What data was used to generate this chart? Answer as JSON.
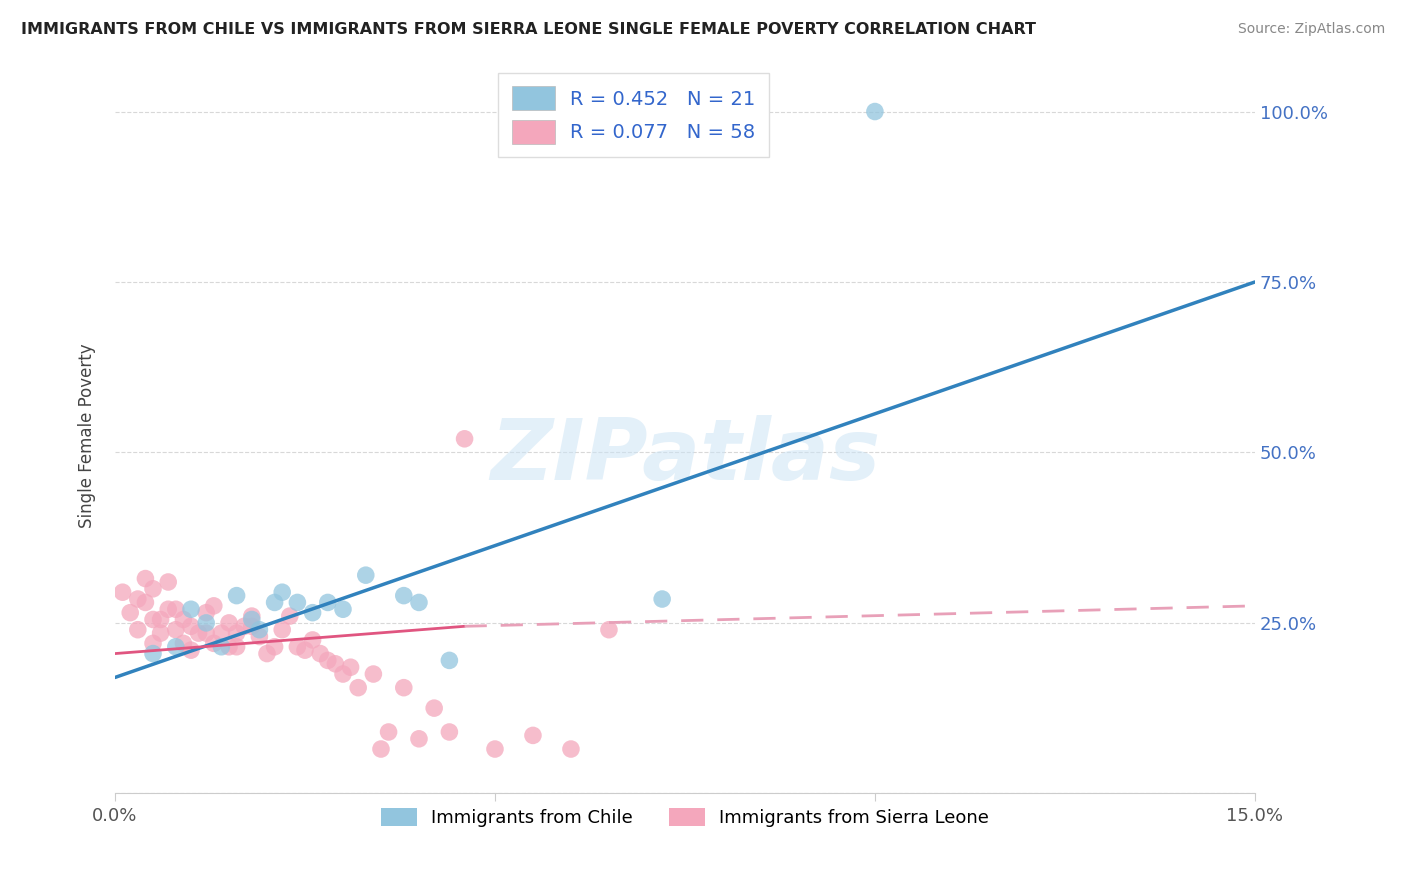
{
  "title": "IMMIGRANTS FROM CHILE VS IMMIGRANTS FROM SIERRA LEONE SINGLE FEMALE POVERTY CORRELATION CHART",
  "source": "Source: ZipAtlas.com",
  "ylabel": "Single Female Poverty",
  "xmin": 0.0,
  "xmax": 0.15,
  "ymin": 0.0,
  "ymax": 1.05,
  "ytick_vals": [
    0.0,
    0.25,
    0.5,
    0.75,
    1.0
  ],
  "ytick_labels_right": [
    "",
    "25.0%",
    "50.0%",
    "75.0%",
    "100.0%"
  ],
  "xtick_vals": [
    0.0,
    0.05,
    0.1,
    0.15
  ],
  "xtick_labels": [
    "0.0%",
    "",
    "",
    "15.0%"
  ],
  "legend_r_chile": "R = 0.452",
  "legend_n_chile": "N = 21",
  "legend_r_sl": "R = 0.077",
  "legend_n_sl": "N = 58",
  "legend_label_chile": "Immigrants from Chile",
  "legend_label_sl": "Immigrants from Sierra Leone",
  "blue_color": "#92c5de",
  "pink_color": "#f4a7bc",
  "blue_line_color": "#3182bd",
  "pink_line_solid_color": "#e05580",
  "pink_line_dash_color": "#e8a0b8",
  "watermark_text": "ZIPatlas",
  "watermark_color": "#cce4f5",
  "blue_line_y0": 0.17,
  "blue_line_y1": 0.75,
  "pink_line_y0": 0.205,
  "pink_line_y1_solid": 0.245,
  "pink_line_x1_solid": 0.046,
  "pink_line_y1_dash": 0.275,
  "chile_x": [
    0.005,
    0.008,
    0.01,
    0.012,
    0.014,
    0.016,
    0.018,
    0.019,
    0.021,
    0.022,
    0.024,
    0.026,
    0.028,
    0.03,
    0.033,
    0.038,
    0.04,
    0.044,
    0.072,
    0.085,
    0.1
  ],
  "chile_y": [
    0.205,
    0.215,
    0.27,
    0.25,
    0.215,
    0.29,
    0.255,
    0.24,
    0.28,
    0.295,
    0.28,
    0.265,
    0.28,
    0.27,
    0.32,
    0.29,
    0.28,
    0.195,
    0.285,
    1.0,
    1.0
  ],
  "sl_x": [
    0.001,
    0.002,
    0.003,
    0.003,
    0.004,
    0.004,
    0.005,
    0.005,
    0.005,
    0.006,
    0.006,
    0.007,
    0.007,
    0.008,
    0.008,
    0.009,
    0.009,
    0.01,
    0.01,
    0.011,
    0.012,
    0.012,
    0.013,
    0.013,
    0.014,
    0.015,
    0.015,
    0.016,
    0.016,
    0.017,
    0.018,
    0.018,
    0.019,
    0.02,
    0.021,
    0.022,
    0.023,
    0.024,
    0.025,
    0.026,
    0.027,
    0.028,
    0.029,
    0.03,
    0.031,
    0.032,
    0.034,
    0.035,
    0.036,
    0.038,
    0.04,
    0.042,
    0.044,
    0.046,
    0.05,
    0.055,
    0.06,
    0.065
  ],
  "sl_y": [
    0.295,
    0.265,
    0.24,
    0.285,
    0.28,
    0.315,
    0.22,
    0.255,
    0.3,
    0.255,
    0.235,
    0.27,
    0.31,
    0.24,
    0.27,
    0.22,
    0.255,
    0.245,
    0.21,
    0.235,
    0.235,
    0.265,
    0.22,
    0.275,
    0.235,
    0.215,
    0.25,
    0.215,
    0.235,
    0.245,
    0.245,
    0.26,
    0.23,
    0.205,
    0.215,
    0.24,
    0.26,
    0.215,
    0.21,
    0.225,
    0.205,
    0.195,
    0.19,
    0.175,
    0.185,
    0.155,
    0.175,
    0.065,
    0.09,
    0.155,
    0.08,
    0.125,
    0.09,
    0.52,
    0.065,
    0.085,
    0.065,
    0.24
  ]
}
